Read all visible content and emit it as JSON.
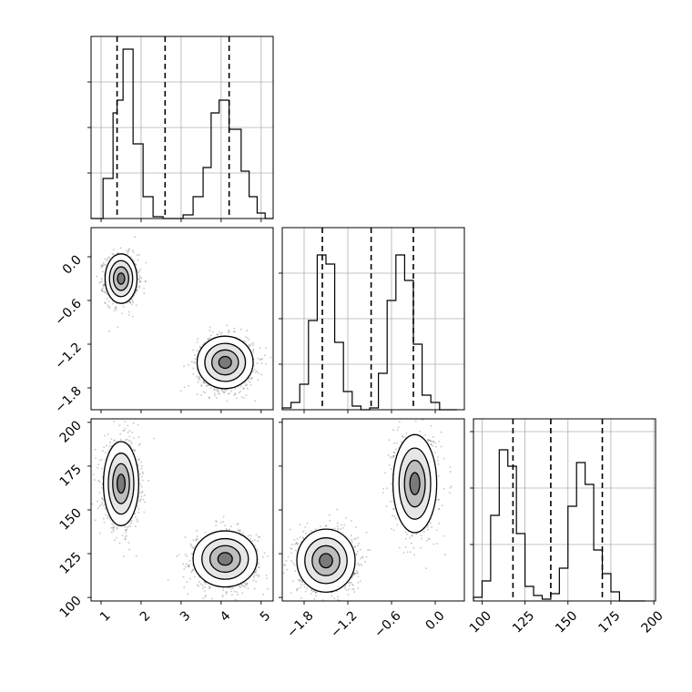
{
  "figure": {
    "background": "#ffffff",
    "grid_color": "#b0b0b0",
    "line_color": "#000000"
  },
  "chart_data": [
    {
      "type": "histogram",
      "panel": "hist-param-1",
      "xlim": [
        0.75,
        5.3
      ],
      "ylim": [
        0,
        1.0
      ],
      "grid": true,
      "x_ticks": [
        1,
        2,
        3,
        4,
        5
      ],
      "y_ticks": [
        0.25,
        0.5,
        0.75
      ],
      "tick_labels_shown": false,
      "bin_edges": [
        0.75,
        1.05,
        1.3,
        1.4,
        1.55,
        1.8,
        2.05,
        2.3,
        2.55,
        2.8,
        3.05,
        3.3,
        3.55,
        3.75,
        3.95,
        4.2,
        4.5,
        4.7,
        4.9,
        5.1,
        5.3
      ],
      "counts": [
        0.0,
        0.22,
        0.58,
        0.65,
        0.93,
        0.41,
        0.12,
        0.01,
        0.0,
        0.0,
        0.02,
        0.12,
        0.28,
        0.58,
        0.65,
        0.49,
        0.26,
        0.12,
        0.03,
        0.0
      ],
      "quantiles": [
        1.4,
        2.6,
        4.2
      ],
      "quantile_style": "dashed"
    },
    {
      "type": "histogram",
      "panel": "hist-param-2",
      "xlim": [
        -2.1,
        0.4
      ],
      "ylim": [
        0,
        1.0
      ],
      "grid": true,
      "x_ticks": [
        -1.8,
        -1.2,
        -0.6,
        0.0
      ],
      "y_ticks": [
        0.25,
        0.5,
        0.75
      ],
      "tick_labels_shown": false,
      "bin_edges": [
        -2.1,
        -1.98,
        -1.86,
        -1.74,
        -1.62,
        -1.5,
        -1.38,
        -1.26,
        -1.14,
        -1.02,
        -0.9,
        -0.78,
        -0.66,
        -0.54,
        -0.42,
        -0.3,
        -0.18,
        -0.06,
        0.06,
        0.18,
        0.3
      ],
      "counts": [
        0.01,
        0.04,
        0.14,
        0.49,
        0.85,
        0.8,
        0.37,
        0.1,
        0.02,
        0.0,
        0.01,
        0.2,
        0.6,
        0.85,
        0.71,
        0.36,
        0.08,
        0.04,
        0.0,
        0.0
      ],
      "quantiles": [
        -1.55,
        -0.88,
        -0.3
      ],
      "quantile_style": "dashed"
    },
    {
      "type": "histogram",
      "panel": "hist-param-3",
      "xlim": [
        95,
        201
      ],
      "ylim": [
        0,
        1.0
      ],
      "grid": true,
      "x_ticks": [
        100,
        125,
        150,
        175,
        200
      ],
      "x_tick_labels": [
        "100",
        "125",
        "150",
        "175",
        "200"
      ],
      "y_ticks": [
        0.31,
        0.62,
        0.93
      ],
      "tick_labels_shown": true,
      "bin_edges": [
        95,
        100,
        105,
        110,
        115,
        120,
        125,
        130,
        135,
        140,
        145,
        150,
        155,
        160,
        165,
        170,
        175,
        180,
        185,
        190,
        195
      ],
      "counts": [
        0.02,
        0.11,
        0.47,
        0.83,
        0.74,
        0.37,
        0.08,
        0.03,
        0.01,
        0.04,
        0.18,
        0.52,
        0.76,
        0.64,
        0.28,
        0.15,
        0.05,
        0.0,
        0.0,
        0.0
      ],
      "quantiles": [
        118,
        140,
        170
      ],
      "quantile_style": "dashed"
    },
    {
      "type": "density-scatter",
      "panel": "scatter-param-1-vs-param-2",
      "xlim": [
        0.75,
        5.3
      ],
      "ylim": [
        -2.1,
        0.4
      ],
      "grid": false,
      "x_ticks": [
        1,
        2,
        3,
        4,
        5
      ],
      "y_ticks": [
        -1.8,
        -1.2,
        -0.6,
        0.0
      ],
      "y_tick_labels": [
        "−1.8",
        "−1.2",
        "−0.6",
        "0.0"
      ],
      "clusters": [
        {
          "center": [
            1.5,
            -0.3
          ],
          "spread": [
            0.2,
            0.17
          ]
        },
        {
          "center": [
            4.1,
            -1.45
          ],
          "spread": [
            0.35,
            0.18
          ]
        }
      ]
    },
    {
      "type": "density-scatter",
      "panel": "scatter-param-1-vs-param-3",
      "xlim": [
        0.75,
        5.3
      ],
      "ylim": [
        98,
        202
      ],
      "grid": false,
      "x_ticks": [
        1,
        2,
        3,
        4,
        5
      ],
      "x_tick_labels": [
        "1",
        "2",
        "3",
        "4",
        "5"
      ],
      "y_ticks": [
        100,
        125,
        150,
        175,
        200
      ],
      "y_tick_labels": [
        "100",
        "125",
        "150",
        "175",
        "200"
      ],
      "clusters": [
        {
          "center": [
            1.5,
            165
          ],
          "spread": [
            0.22,
            12
          ]
        },
        {
          "center": [
            4.1,
            122
          ],
          "spread": [
            0.4,
            8
          ]
        }
      ]
    },
    {
      "type": "density-scatter",
      "panel": "scatter-param-2-vs-param-3",
      "xlim": [
        -2.1,
        0.4
      ],
      "ylim": [
        98,
        202
      ],
      "grid": false,
      "x_ticks": [
        -1.8,
        -1.2,
        -0.6,
        0.0
      ],
      "x_tick_labels": [
        "−1.8",
        "−1.2",
        "−0.6",
        "0.0"
      ],
      "y_ticks": [
        100,
        125,
        150,
        175,
        200
      ],
      "clusters": [
        {
          "center": [
            -1.5,
            121
          ],
          "spread": [
            0.2,
            9
          ]
        },
        {
          "center": [
            -0.28,
            165
          ],
          "spread": [
            0.15,
            14
          ]
        }
      ]
    }
  ]
}
